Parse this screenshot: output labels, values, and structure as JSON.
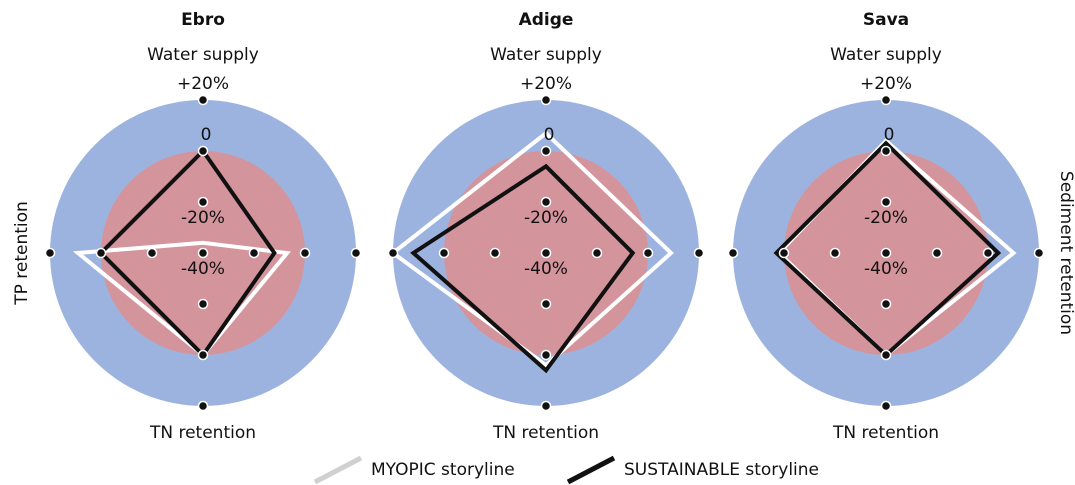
{
  "chart_data": [
    {
      "type": "radar",
      "title": "Ebro",
      "axes": [
        "Water supply",
        null,
        "TN retention",
        "TP retention"
      ],
      "rlim": [
        -40,
        20
      ],
      "rticks": [
        {
          "value": 20,
          "label": "+20%"
        },
        0,
        {
          "value": -20,
          "label": "-20%"
        },
        {
          "value": -40,
          "label": "-40%"
        }
      ],
      "series": [
        {
          "name": "MYOPIC storyline",
          "color": "#ffffff",
          "values": [
            -36,
            -7,
            0,
            9
          ]
        },
        {
          "name": "SUSTAINABLE storyline",
          "color": "#111111",
          "values": [
            0,
            -12,
            0,
            0
          ]
        }
      ]
    },
    {
      "type": "radar",
      "title": "Adige",
      "axes": [
        "Water supply",
        null,
        "TN retention",
        null
      ],
      "rlim": [
        -40,
        20
      ],
      "rticks": [
        {
          "value": 20,
          "label": "+20%"
        },
        0,
        {
          "value": -20,
          "label": "-20%"
        },
        {
          "value": -40,
          "label": "-40%"
        }
      ],
      "series": [
        {
          "color": "#ffffff",
          "values": [
            7,
            9,
            4,
            20
          ]
        },
        {
          "color": "#111111",
          "values": [
            -6,
            -6,
            6,
            12
          ]
        }
      ]
    },
    {
      "type": "radar",
      "title": "Sava",
      "axes": [
        "Water supply",
        "Sediment retention",
        "TN retention",
        null
      ],
      "rlim": [
        -40,
        20
      ],
      "rticks": [
        {
          "value": 20,
          "label": "+20%"
        },
        0,
        {
          "value": -20,
          "label": "-20%"
        },
        {
          "value": -40,
          "label": "-40%"
        }
      ],
      "series": [
        {
          "color": "#ffffff",
          "values": [
            4,
            10,
            0,
            2
          ]
        },
        {
          "color": "#111111",
          "values": [
            3,
            4,
            0,
            3
          ]
        }
      ]
    }
  ]
}
